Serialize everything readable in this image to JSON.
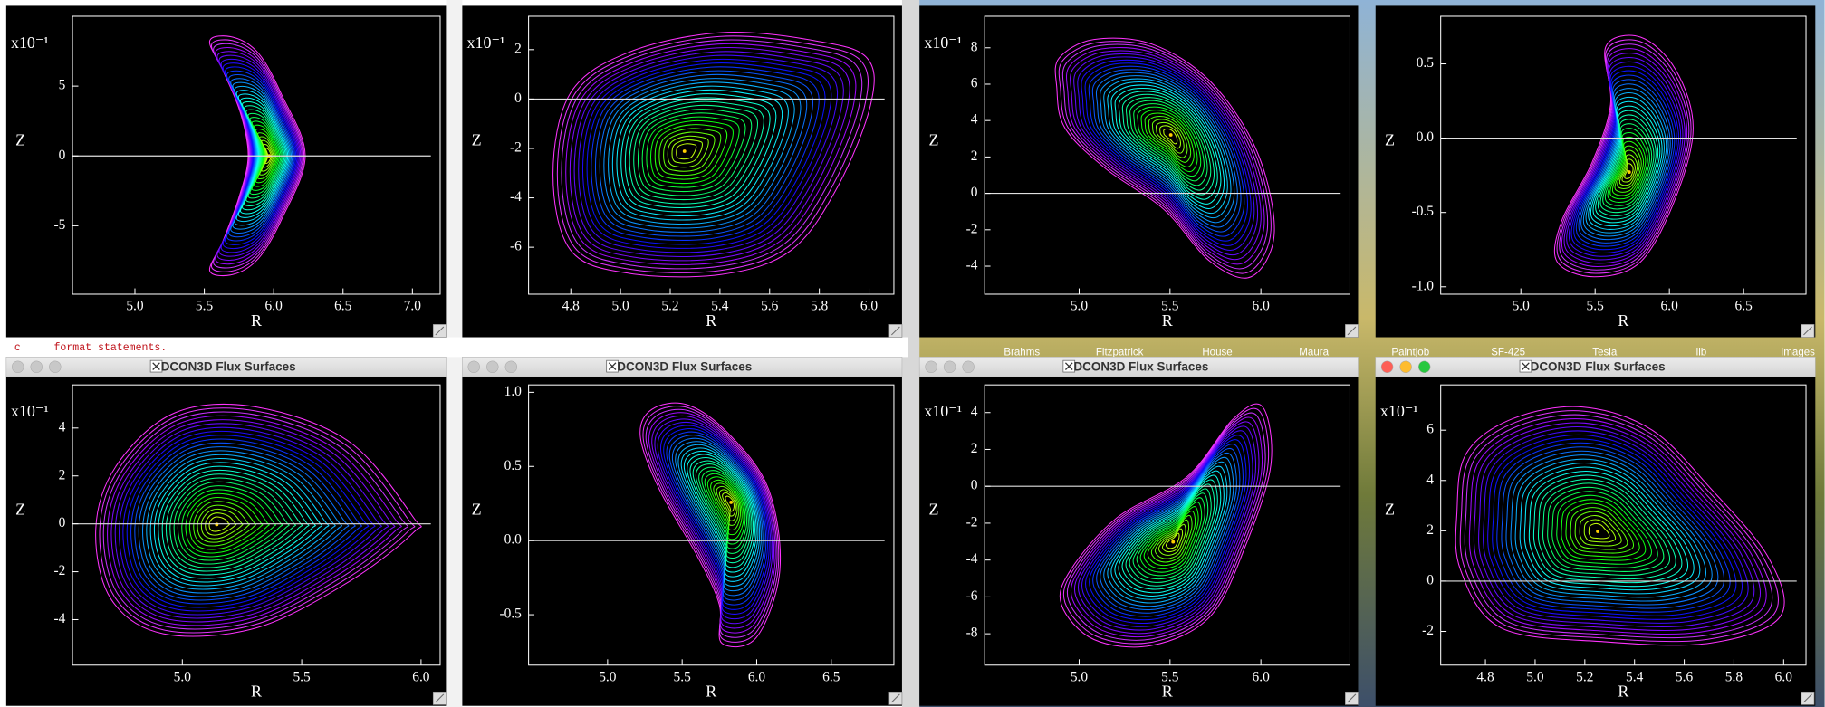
{
  "windows": [
    {
      "title": "DCON3D Flux Surfaces"
    },
    {
      "title": "DCON3D Flux Surfaces"
    },
    {
      "title": "DCON3D Flux Surfaces"
    },
    {
      "title": "DCON3D Flux Surfaces"
    }
  ],
  "terminal": {
    "marker": "c",
    "text": "format statements."
  },
  "dock": [
    "Brahms",
    "Fitzpatrick",
    "House",
    "Maura",
    "Paintjob",
    "SF-425",
    "Tesla",
    "lib",
    "Images"
  ],
  "chart_data": [
    {
      "type": "contour",
      "x_label": "R",
      "y_label": "Z",
      "y_multiplier": "x10⁻¹",
      "xlim": [
        4.55,
        7.2
      ],
      "ylim": [
        -9.9,
        10
      ],
      "xticks": [
        {
          "value": 5,
          "label": "5.0"
        },
        5.5,
        {
          "value": 6,
          "label": "6.0"
        },
        6.5,
        {
          "value": 7,
          "label": "7.0"
        }
      ],
      "yticks": [
        5,
        0,
        -5
      ]
    },
    {
      "type": "contour",
      "x_label": "R",
      "y_label": "Z",
      "y_multiplier": "x10⁻¹",
      "xlim": [
        4.63,
        6.1
      ],
      "ylim": [
        -7.9,
        3.35
      ],
      "xticks": [
        4.8,
        {
          "value": 5,
          "label": "5.0"
        },
        5.2,
        5.4,
        5.6,
        5.8,
        {
          "value": 6,
          "label": "6.0"
        }
      ],
      "yticks": [
        2,
        0,
        -2,
        -4,
        -6
      ]
    },
    {
      "type": "contour",
      "x_label": "R",
      "y_label": "Z",
      "y_multiplier": "x10⁻¹",
      "xlim": [
        4.48,
        6.49
      ],
      "ylim": [
        -5.54,
        9.73
      ],
      "xticks": [
        {
          "value": 5,
          "label": "5.0"
        },
        5.5,
        {
          "value": 6,
          "label": "6.0"
        }
      ],
      "yticks": [
        8,
        6,
        4,
        2,
        0,
        -2,
        -4
      ]
    },
    {
      "type": "contour",
      "x_label": "R",
      "y_label": "Z",
      "xlim": [
        4.46,
        6.92
      ],
      "ylim": [
        -1.05,
        0.82
      ],
      "xticks": [
        {
          "value": 5,
          "label": "5.0"
        },
        5.5,
        {
          "value": 6,
          "label": "6.0"
        },
        6.5
      ],
      "yticks": [
        0.5,
        {
          "value": 0,
          "label": "0.0"
        },
        -0.5,
        {
          "value": -1,
          "label": "-1.0"
        }
      ]
    },
    {
      "type": "contour",
      "x_label": "R",
      "y_label": "Z",
      "y_multiplier": "x10⁻¹",
      "xlim": [
        4.54,
        6.08
      ],
      "ylim": [
        -5.9,
        5.8
      ],
      "xticks": [
        {
          "value": 5,
          "label": "5.0"
        },
        5.5,
        {
          "value": 6,
          "label": "6.0"
        }
      ],
      "yticks": [
        4,
        2,
        0,
        -2,
        -4
      ]
    },
    {
      "type": "contour",
      "x_label": "R",
      "y_label": "Z",
      "xlim": [
        4.47,
        6.92
      ],
      "ylim": [
        -0.84,
        1.05
      ],
      "xticks": [
        {
          "value": 5,
          "label": "5.0"
        },
        5.5,
        {
          "value": 6,
          "label": "6.0"
        },
        6.5
      ],
      "yticks": [
        {
          "value": 1,
          "label": "1.0"
        },
        0.5,
        {
          "value": 0,
          "label": "0.0"
        },
        -0.5
      ]
    },
    {
      "type": "contour",
      "x_label": "R",
      "y_label": "Z",
      "y_multiplier": "x10⁻¹",
      "xlim": [
        4.48,
        6.49
      ],
      "ylim": [
        -9.7,
        5.5
      ],
      "xticks": [
        {
          "value": 5,
          "label": "5.0"
        },
        5.5,
        {
          "value": 6,
          "label": "6.0"
        }
      ],
      "yticks": [
        4,
        2,
        0,
        -2,
        -4,
        -6,
        -8
      ]
    },
    {
      "type": "contour",
      "x_label": "R",
      "y_label": "Z",
      "y_multiplier": "x10⁻¹",
      "xlim": [
        4.62,
        6.09
      ],
      "ylim": [
        -3.34,
        7.8
      ],
      "xticks": [
        4.8,
        {
          "value": 5,
          "label": "5.0"
        },
        5.2,
        5.4,
        5.6,
        5.8,
        {
          "value": 6,
          "label": "6.0"
        }
      ],
      "yticks": [
        6,
        4,
        2,
        0,
        -2
      ]
    }
  ]
}
